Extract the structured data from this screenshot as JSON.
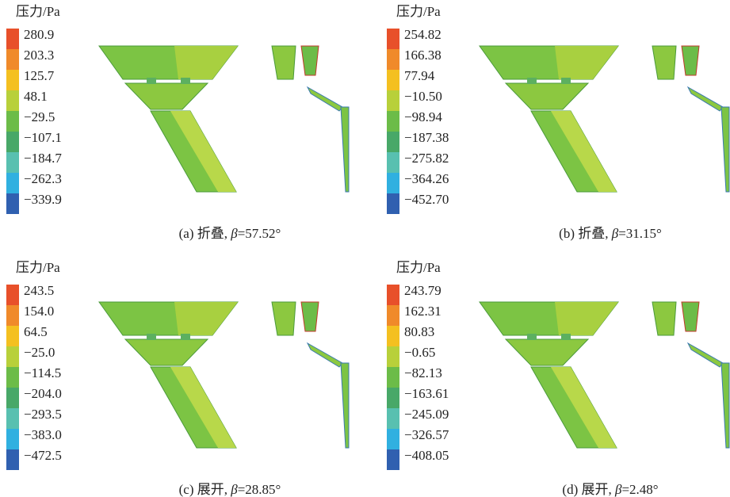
{
  "panels": [
    {
      "legend_title": "压力/Pa",
      "ticks": [
        "280.9",
        "203.3",
        "125.7",
        "48.1",
        "−29.5",
        "−107.1",
        "−184.7",
        "−262.3",
        "−339.9"
      ],
      "caption": {
        "prefix": "(a) 折叠, ",
        "symbol": "β",
        "suffix": "=57.52°"
      }
    },
    {
      "legend_title": "压力/Pa",
      "ticks": [
        "254.82",
        "166.38",
        "77.94",
        "−10.50",
        "−98.94",
        "−187.38",
        "−275.82",
        "−364.26",
        "−452.70"
      ],
      "caption": {
        "prefix": "(b) 折叠, ",
        "symbol": "β",
        "suffix": "=31.15°"
      }
    },
    {
      "legend_title": "压力/Pa",
      "ticks": [
        "243.5",
        "154.0",
        "64.5",
        "−25.0",
        "−114.5",
        "−204.0",
        "−293.5",
        "−383.0",
        "−472.5"
      ],
      "caption": {
        "prefix": "(c) 展开, ",
        "symbol": "β",
        "suffix": "=28.85°"
      }
    },
    {
      "legend_title": "压力/Pa",
      "ticks": [
        "243.79",
        "162.31",
        "80.83",
        "−0.65",
        "−82.13",
        "−163.61",
        "−245.09",
        "−326.57",
        "−408.05"
      ],
      "caption": {
        "prefix": "(d) 展开, ",
        "symbol": "β",
        "suffix": "=2.48°"
      }
    }
  ]
}
